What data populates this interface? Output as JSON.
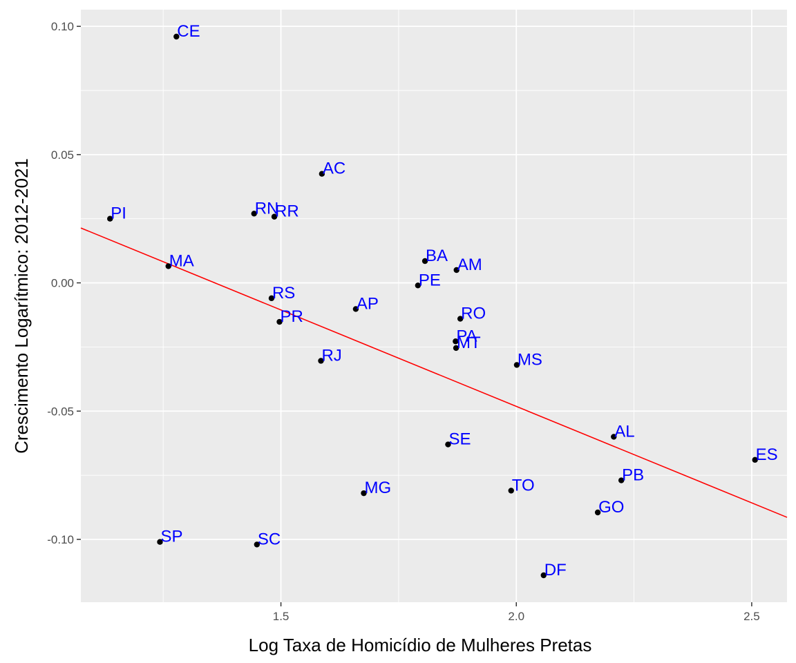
{
  "chart_data": {
    "type": "scatter",
    "title": "",
    "xlabel": "Log Taxa de Homicídio de Mulheres Pretas",
    "ylabel": "Crescimento Logarítmico: 2012-2021",
    "xlim": [
      1.075,
      2.575
    ],
    "ylim": [
      -0.1245,
      0.1065
    ],
    "x_ticks": [
      1.5,
      2.0,
      2.5
    ],
    "x_tick_labels": [
      "1.5",
      "2.0",
      "2.5"
    ],
    "y_ticks": [
      0.1,
      0.05,
      0.0,
      -0.05,
      -0.1
    ],
    "y_tick_labels": [
      "0.10",
      "0.05",
      "0.00",
      "-0.05",
      "-0.10"
    ],
    "grid": true,
    "background": "#ebebeb",
    "grid_color": "#ffffff",
    "point_color": "#000000",
    "label_color": "#0000ff",
    "regression_line": {
      "color": "#ff0000",
      "x": [
        1.075,
        2.575
      ],
      "y": [
        0.0214,
        -0.0914
      ]
    },
    "points": [
      {
        "label": "CE",
        "x": 1.278,
        "y": 0.096
      },
      {
        "label": "AC",
        "x": 1.587,
        "y": 0.0425
      },
      {
        "label": "PI",
        "x": 1.137,
        "y": 0.025
      },
      {
        "label": "RN",
        "x": 1.443,
        "y": 0.027
      },
      {
        "label": "RR",
        "x": 1.486,
        "y": 0.0258
      },
      {
        "label": "MA",
        "x": 1.261,
        "y": 0.0065
      },
      {
        "label": "BA",
        "x": 1.806,
        "y": 0.0085
      },
      {
        "label": "AM",
        "x": 1.873,
        "y": 0.005
      },
      {
        "label": "PE",
        "x": 1.791,
        "y": -0.001
      },
      {
        "label": "RS",
        "x": 1.48,
        "y": -0.006
      },
      {
        "label": "PR",
        "x": 1.497,
        "y": -0.0152
      },
      {
        "label": "AP",
        "x": 1.659,
        "y": -0.0102
      },
      {
        "label": "RO",
        "x": 1.881,
        "y": -0.014
      },
      {
        "label": "PA",
        "x": 1.871,
        "y": -0.0228
      },
      {
        "label": "MT",
        "x": 1.872,
        "y": -0.0254
      },
      {
        "label": "RJ",
        "x": 1.585,
        "y": -0.0304
      },
      {
        "label": "MS",
        "x": 2.001,
        "y": -0.032
      },
      {
        "label": "AL",
        "x": 2.207,
        "y": -0.06
      },
      {
        "label": "SE",
        "x": 1.855,
        "y": -0.063
      },
      {
        "label": "ES",
        "x": 2.507,
        "y": -0.069
      },
      {
        "label": "PB",
        "x": 2.223,
        "y": -0.077
      },
      {
        "label": "MG",
        "x": 1.676,
        "y": -0.082
      },
      {
        "label": "TO",
        "x": 1.989,
        "y": -0.081
      },
      {
        "label": "GO",
        "x": 2.173,
        "y": -0.0895
      },
      {
        "label": "SP",
        "x": 1.243,
        "y": -0.101
      },
      {
        "label": "SC",
        "x": 1.449,
        "y": -0.102
      },
      {
        "label": "DF",
        "x": 2.058,
        "y": -0.114
      }
    ]
  }
}
